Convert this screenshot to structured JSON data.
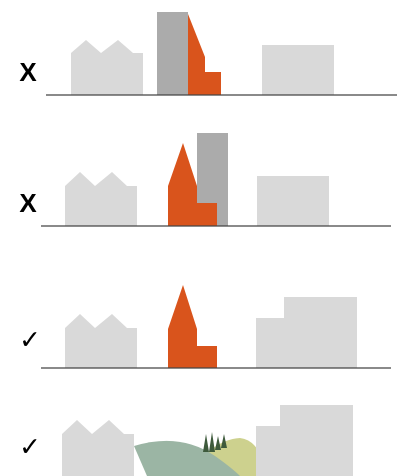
{
  "rows": [
    {
      "mark": "X"
    },
    {
      "mark": "X"
    },
    {
      "mark": "✓"
    },
    {
      "mark": "✓"
    }
  ]
}
